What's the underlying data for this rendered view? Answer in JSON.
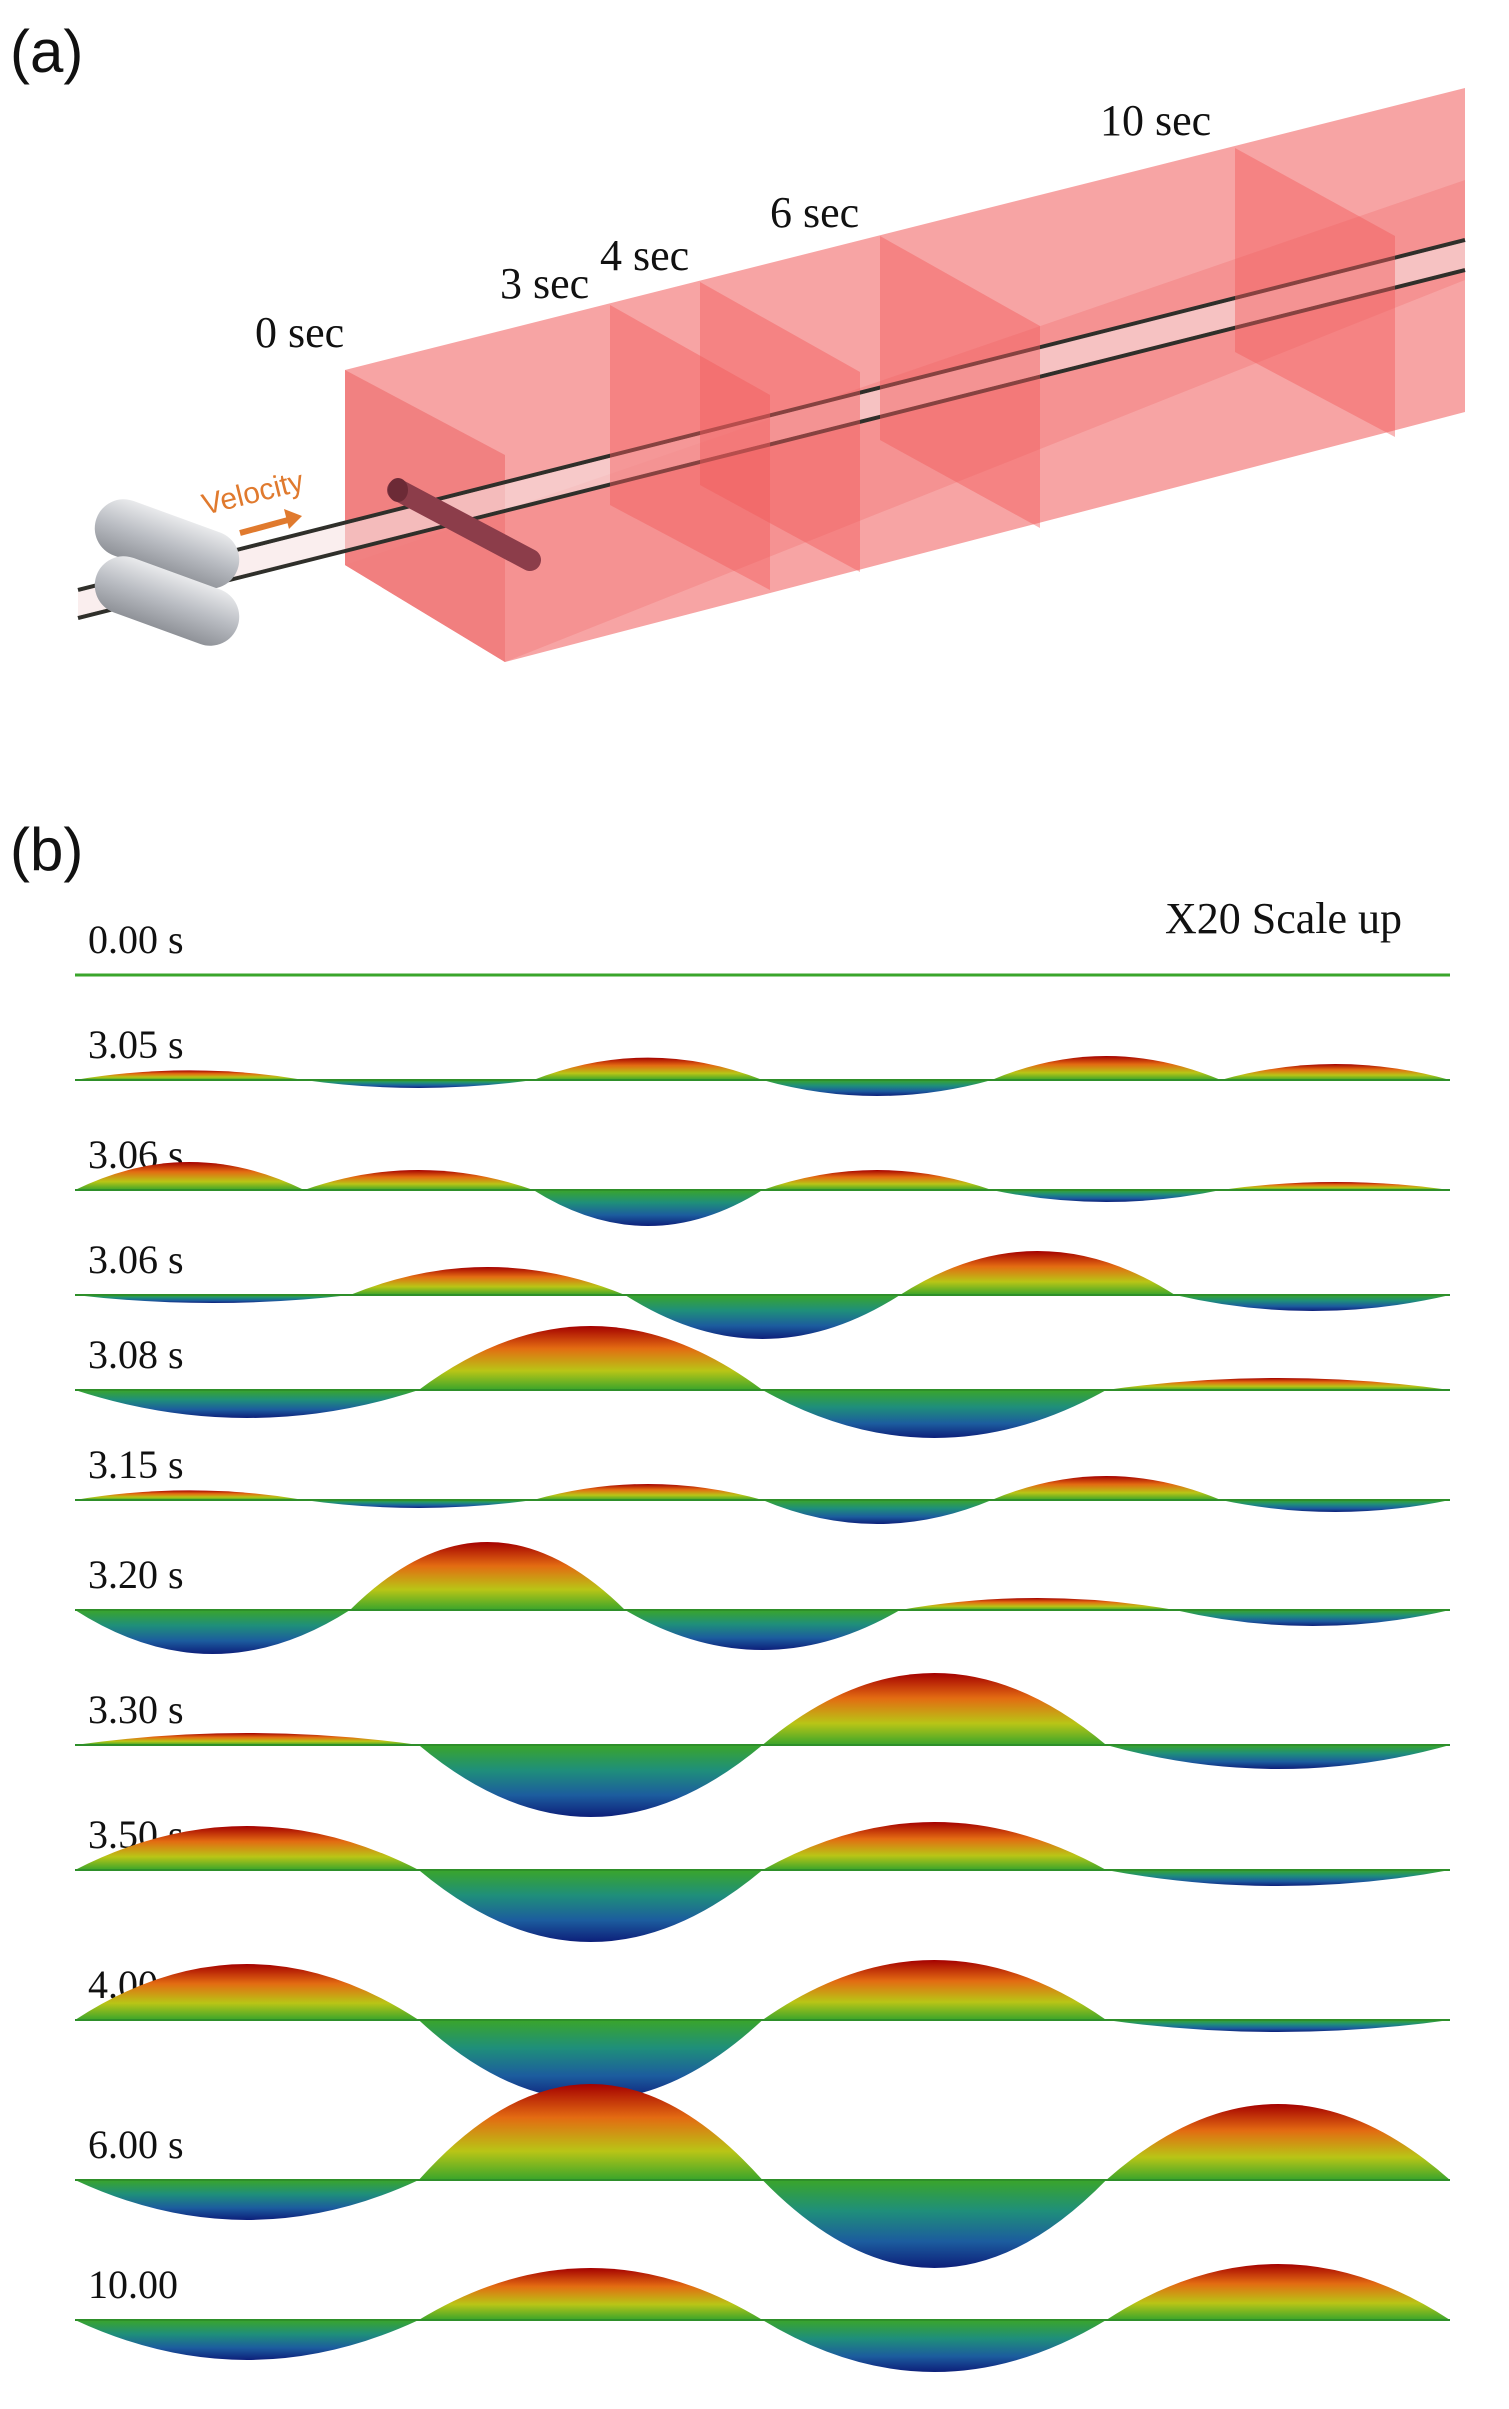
{
  "panel_a": {
    "label": "(a)",
    "velocity_label": "Velocity",
    "section_labels": [
      "0 sec",
      "3 sec",
      "4 sec",
      "6 sec",
      "10 sec"
    ],
    "colors": {
      "tunnel": "#f26d6d",
      "velocity_arrow": "#e07a2e",
      "rollers": "#b9bcc2"
    }
  },
  "panel_b": {
    "label": "(b)",
    "scale_note": "X20 Scale up",
    "rows": [
      {
        "time": "0.00 s",
        "mode": []
      },
      {
        "time": "3.05 s",
        "mode": [
          0.12,
          -0.1,
          0.28,
          -0.2,
          0.3,
          0.2
        ]
      },
      {
        "time": "3.06 s",
        "mode": [
          0.35,
          0.25,
          -0.45,
          0.25,
          -0.15,
          0.1
        ]
      },
      {
        "time": "3.06 s",
        "mode": [
          -0.1,
          0.35,
          -0.55,
          0.55,
          -0.2
        ]
      },
      {
        "time": "3.08 s",
        "mode": [
          -0.35,
          0.8,
          -0.6,
          0.15
        ]
      },
      {
        "time": "3.15 s",
        "mode": [
          0.12,
          -0.1,
          0.2,
          -0.3,
          0.3,
          -0.15
        ]
      },
      {
        "time": "3.20 s",
        "mode": [
          -0.55,
          0.85,
          -0.5,
          0.15,
          -0.2
        ]
      },
      {
        "time": "3.30 s",
        "mode": [
          0.15,
          -0.9,
          0.9,
          -0.3
        ]
      },
      {
        "time": "3.50 s",
        "mode": [
          0.55,
          -0.9,
          0.6,
          -0.2
        ]
      },
      {
        "time": "4.00 s",
        "mode": [
          0.7,
          -1.0,
          0.75,
          -0.15
        ]
      },
      {
        "time": "6.00 s",
        "mode": [
          -0.5,
          1.2,
          -1.1,
          0.95
        ]
      },
      {
        "time": "10.00",
        "mode": [
          -0.5,
          0.65,
          -0.65,
          0.7
        ]
      }
    ]
  }
}
